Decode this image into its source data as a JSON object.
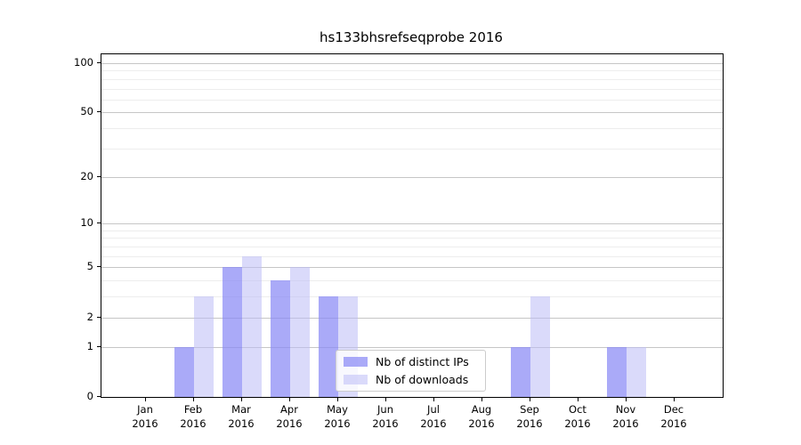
{
  "chart_data": {
    "type": "bar",
    "title": "hs133bhsrefseqprobe 2016",
    "categories": [
      "Jan 2016",
      "Feb 2016",
      "Mar 2016",
      "Apr 2016",
      "May 2016",
      "Jun 2016",
      "Jul 2016",
      "Aug 2016",
      "Sep 2016",
      "Oct 2016",
      "Nov 2016",
      "Dec 2016"
    ],
    "x": {
      "months": [
        "Jan",
        "Feb",
        "Mar",
        "Apr",
        "May",
        "Jun",
        "Jul",
        "Aug",
        "Sep",
        "Oct",
        "Nov",
        "Dec"
      ],
      "year": "2016"
    },
    "series": [
      {
        "name": "Nb of distinct IPs",
        "color": "rgba(137,137,245,0.72)",
        "values": [
          0,
          1,
          5,
          4,
          3,
          0,
          0,
          0,
          1,
          0,
          1,
          0
        ]
      },
      {
        "name": "Nb of downloads",
        "color": "rgba(187,187,246,0.55)",
        "values": [
          0,
          3,
          6,
          5,
          3,
          0,
          0,
          0,
          3,
          0,
          1,
          0
        ]
      }
    ],
    "y_scale": "log1p",
    "y_ticks": [
      0,
      1,
      2,
      5,
      10,
      20,
      50,
      100
    ],
    "y_minor_gridlines": [
      3,
      4,
      6,
      7,
      8,
      9,
      30,
      40,
      60,
      70,
      80,
      90
    ],
    "ylim": [
      0,
      113
    ],
    "grid": true,
    "legend": {
      "position": "lower center",
      "labels": [
        "Nb of distinct IPs",
        "Nb of downloads"
      ]
    },
    "colors": {
      "major_grid": "#c6c6c6",
      "minor_grid": "#ededed",
      "axis": "#000000",
      "text": "#000000",
      "background": "#ffffff"
    }
  }
}
